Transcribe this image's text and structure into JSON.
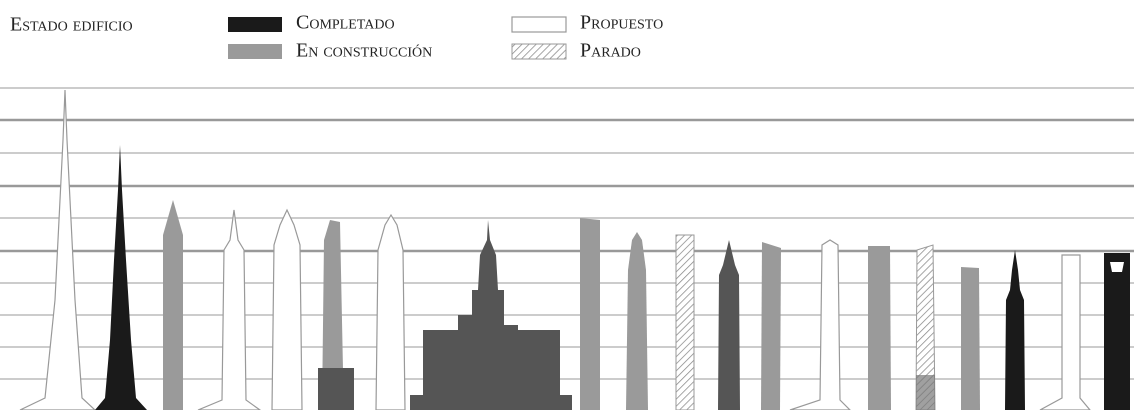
{
  "legend": {
    "title": "Estado edificio",
    "items": [
      "Completado",
      "En construcción",
      "Propuesto",
      "Parado"
    ]
  }
}
